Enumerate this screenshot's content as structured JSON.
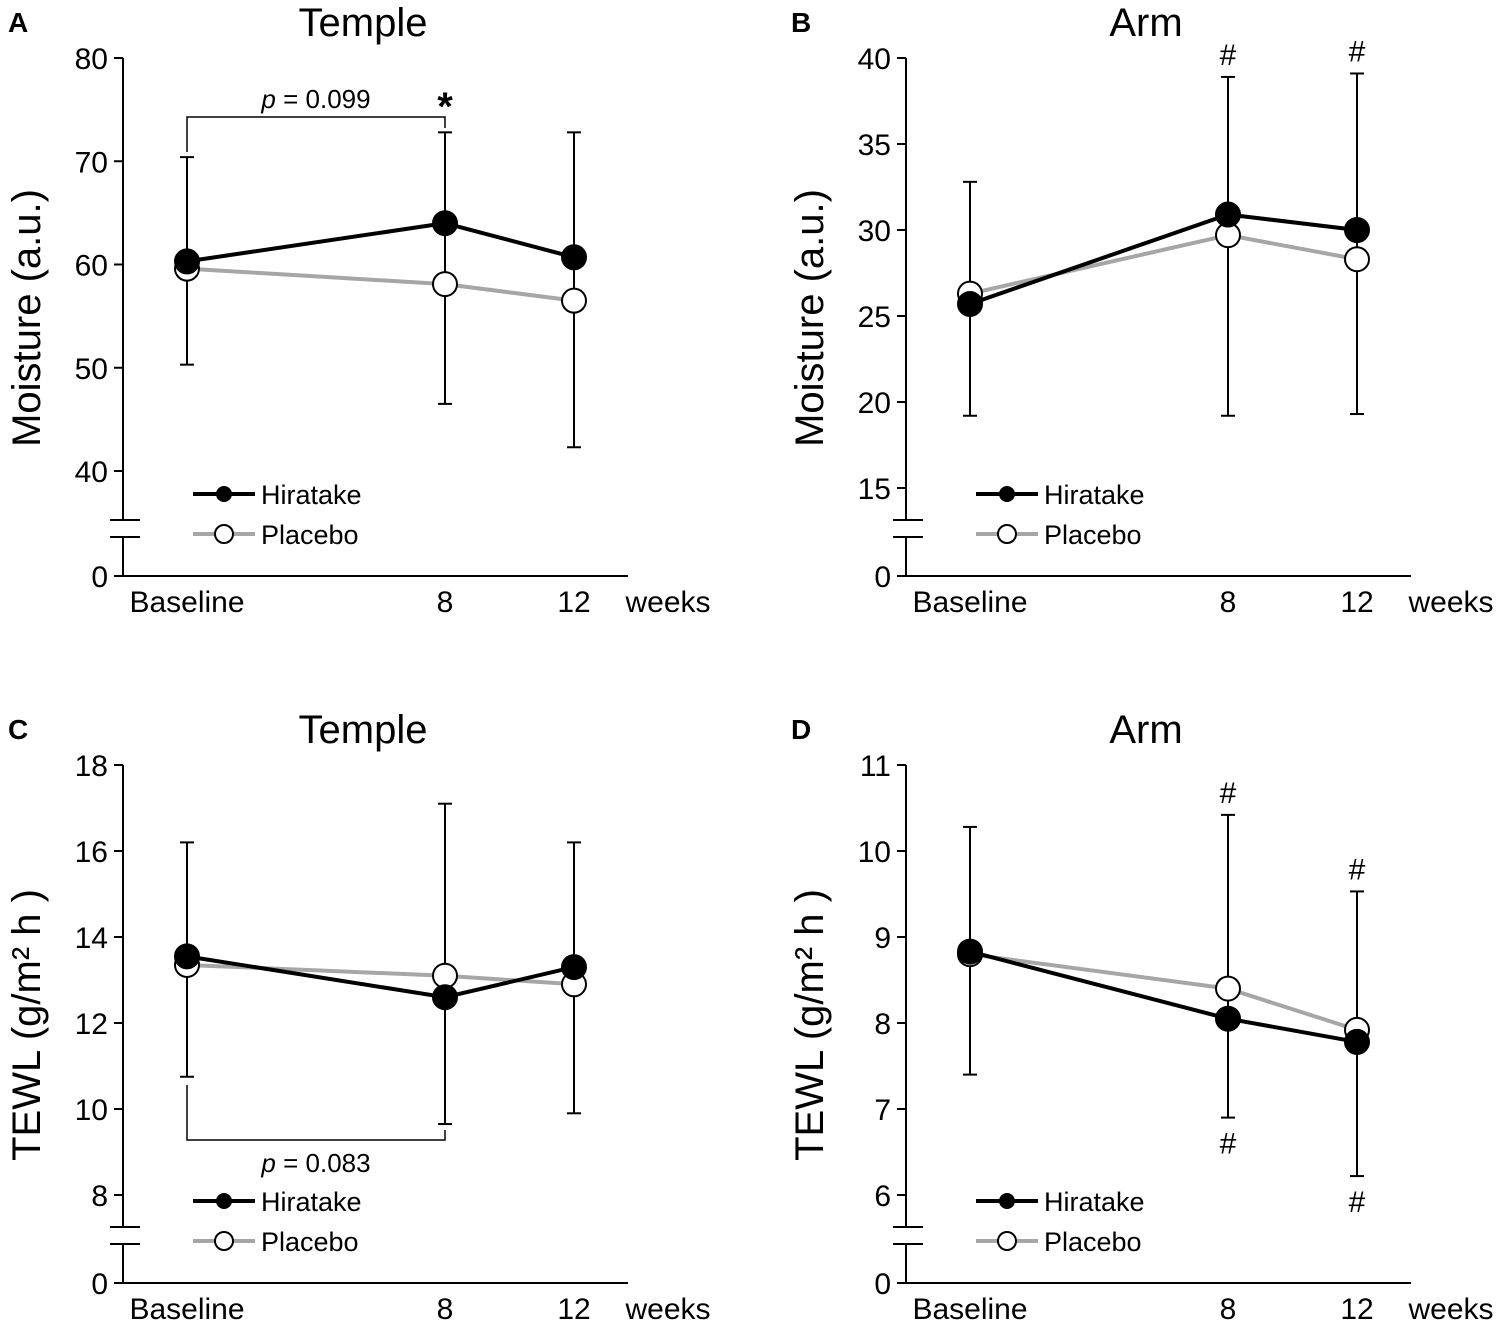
{
  "chart_data": [
    {
      "type": "line",
      "panel": "A",
      "title": "Temple",
      "ylabel": "Moisture (a.u.)",
      "xlabel": "weeks",
      "x": [
        0,
        8,
        12
      ],
      "x_tick_labels": [
        "Baseline",
        "8",
        "12"
      ],
      "y_ticks": [
        40,
        50,
        60,
        70,
        80
      ],
      "ylim": [
        40,
        80
      ],
      "axis_break": true,
      "y_zero_label": "0",
      "series": [
        {
          "name": "Hiratake",
          "color": "#000000",
          "values": [
            60.3,
            64.0,
            60.7
          ]
        },
        {
          "name": "Placebo",
          "color": "#a6a6a6",
          "values": [
            59.6,
            58.1,
            56.5
          ]
        }
      ],
      "error_bars": [
        {
          "x": 0,
          "upper": 70.4,
          "lower": 50.3
        },
        {
          "x": 8,
          "upper": 72.8,
          "lower": 46.5
        },
        {
          "x": 12,
          "upper": 72.8,
          "lower": 42.3
        }
      ],
      "annotations": {
        "bracket": {
          "from": 0,
          "to": 8,
          "position": "above",
          "p_symbol": "p",
          "p_text": " = 0.099"
        },
        "marks": [
          {
            "x": 8,
            "text": "*",
            "position": "above"
          }
        ]
      },
      "legend": {
        "placement": "bottom-left",
        "entries": [
          "Hiratake",
          "Placebo"
        ]
      }
    },
    {
      "type": "line",
      "panel": "B",
      "title": "Arm",
      "ylabel": "Moisture (a.u.)",
      "xlabel": "weeks",
      "x": [
        0,
        8,
        12
      ],
      "x_tick_labels": [
        "Baseline",
        "8",
        "12"
      ],
      "y_ticks": [
        15,
        20,
        25,
        30,
        35,
        40
      ],
      "ylim": [
        15,
        40
      ],
      "axis_break": true,
      "y_zero_label": "0",
      "series": [
        {
          "name": "Hiratake",
          "color": "#000000",
          "values": [
            25.7,
            30.9,
            30.0
          ]
        },
        {
          "name": "Placebo",
          "color": "#a6a6a6",
          "values": [
            26.3,
            29.7,
            28.3
          ]
        }
      ],
      "error_bars": [
        {
          "x": 0,
          "upper": 32.8,
          "lower": 19.2
        },
        {
          "x": 8,
          "upper": 38.9,
          "lower": 19.2
        },
        {
          "x": 12,
          "upper": 39.1,
          "lower": 19.3
        }
      ],
      "annotations": {
        "marks": [
          {
            "x": 8,
            "text": "#",
            "position": "above"
          },
          {
            "x": 12,
            "text": "#",
            "position": "above"
          }
        ]
      },
      "legend": {
        "placement": "bottom-left",
        "entries": [
          "Hiratake",
          "Placebo"
        ]
      }
    },
    {
      "type": "line",
      "panel": "C",
      "title": "Temple",
      "ylabel": "TEWL (g/m² h )",
      "xlabel": "weeks",
      "x": [
        0,
        8,
        12
      ],
      "x_tick_labels": [
        "Baseline",
        "8",
        "12"
      ],
      "y_ticks": [
        8,
        10,
        12,
        14,
        16,
        18
      ],
      "ylim": [
        8,
        18
      ],
      "axis_break": true,
      "y_zero_label": "0",
      "series": [
        {
          "name": "Hiratake",
          "color": "#000000",
          "values": [
            13.55,
            12.6,
            13.3
          ]
        },
        {
          "name": "Placebo",
          "color": "#a6a6a6",
          "values": [
            13.35,
            13.1,
            12.9
          ]
        }
      ],
      "error_bars": [
        {
          "x": 0,
          "upper": 16.2,
          "lower": 10.75
        },
        {
          "x": 8,
          "upper": 17.1,
          "lower": 9.65
        },
        {
          "x": 12,
          "upper": 16.2,
          "lower": 9.9
        }
      ],
      "annotations": {
        "bracket": {
          "from": 0,
          "to": 8,
          "position": "below",
          "p_symbol": "p",
          "p_text": " = 0.083"
        }
      },
      "legend": {
        "placement": "bottom-left",
        "entries": [
          "Hiratake",
          "Placebo"
        ]
      }
    },
    {
      "type": "line",
      "panel": "D",
      "title": "Arm",
      "ylabel": "TEWL (g/m² h )",
      "xlabel": "weeks",
      "x": [
        0,
        8,
        12
      ],
      "x_tick_labels": [
        "Baseline",
        "8",
        "12"
      ],
      "y_ticks": [
        6,
        7,
        8,
        9,
        10,
        11
      ],
      "ylim": [
        6,
        11
      ],
      "axis_break": true,
      "y_zero_label": "0",
      "series": [
        {
          "name": "Hiratake",
          "color": "#000000",
          "values": [
            8.83,
            8.05,
            7.78
          ]
        },
        {
          "name": "Placebo",
          "color": "#a6a6a6",
          "values": [
            8.8,
            8.4,
            7.92
          ]
        }
      ],
      "error_bars": [
        {
          "x": 0,
          "upper": 10.28,
          "lower": 7.4
        },
        {
          "x": 8,
          "upper": 10.42,
          "lower": 6.9
        },
        {
          "x": 12,
          "upper": 9.53,
          "lower": 6.22
        }
      ],
      "annotations": {
        "marks": [
          {
            "x": 8,
            "text": "#",
            "position": "above"
          },
          {
            "x": 12,
            "text": "#",
            "position": "above"
          },
          {
            "x": 8,
            "text": "#",
            "position": "below"
          },
          {
            "x": 12,
            "text": "#",
            "position": "below"
          }
        ]
      },
      "legend": {
        "placement": "bottom-left",
        "entries": [
          "Hiratake",
          "Placebo"
        ]
      }
    }
  ]
}
